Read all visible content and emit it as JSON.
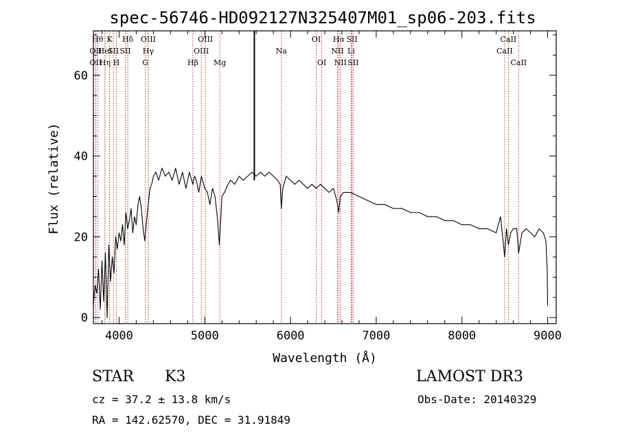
{
  "chart_data": {
    "type": "line",
    "title": "spec-56746-HD092127N325407M01_sp06-203.fits",
    "xlabel": "Wavelength (Å)",
    "ylabel": "Flux (relative)",
    "xlim": [
      3700,
      9100
    ],
    "ylim": [
      -1.5,
      71
    ],
    "xticks": [
      4000,
      5000,
      6000,
      7000,
      8000,
      9000
    ],
    "xtick_labels": [
      "4000",
      "5000",
      "6000",
      "7000",
      "8000",
      "9000"
    ],
    "yticks": [
      0,
      20,
      40,
      60
    ],
    "ytick_labels": [
      "0",
      "20",
      "40",
      "60"
    ],
    "grid": false,
    "spike": {
      "x": 5578,
      "y_top": 71
    },
    "series": [
      {
        "name": "flux",
        "x": [
          3700,
          3720,
          3740,
          3760,
          3780,
          3800,
          3820,
          3840,
          3860,
          3880,
          3900,
          3920,
          3940,
          3960,
          3980,
          4000,
          4020,
          4040,
          4060,
          4080,
          4100,
          4120,
          4140,
          4160,
          4180,
          4200,
          4220,
          4240,
          4260,
          4280,
          4300,
          4320,
          4340,
          4360,
          4380,
          4400,
          4430,
          4460,
          4500,
          4540,
          4580,
          4620,
          4660,
          4700,
          4740,
          4780,
          4820,
          4860,
          4880,
          4900,
          4930,
          4960,
          5000,
          5030,
          5060,
          5090,
          5120,
          5150,
          5170,
          5180,
          5190,
          5200,
          5230,
          5270,
          5300,
          5350,
          5400,
          5450,
          5500,
          5550,
          5600,
          5650,
          5700,
          5750,
          5800,
          5850,
          5880,
          5893,
          5910,
          5950,
          6000,
          6050,
          6100,
          6150,
          6200,
          6250,
          6300,
          6350,
          6400,
          6450,
          6500,
          6540,
          6563,
          6580,
          6620,
          6700,
          6800,
          6900,
          7000,
          7100,
          7200,
          7300,
          7400,
          7500,
          7600,
          7700,
          7800,
          7900,
          8000,
          8100,
          8200,
          8300,
          8400,
          8450,
          8480,
          8498,
          8520,
          8542,
          8570,
          8600,
          8640,
          8662,
          8700,
          8750,
          8800,
          8850,
          8900,
          8950,
          8980,
          8995,
          9000
        ],
        "y": [
          3,
          8,
          6,
          12,
          2,
          14,
          4,
          16,
          0,
          18,
          9,
          15,
          11,
          20,
          17,
          21,
          19,
          23,
          18,
          26,
          22,
          24,
          27,
          21,
          25,
          23,
          28,
          30,
          27,
          22,
          19,
          24,
          28,
          32,
          33,
          35,
          36,
          34,
          37,
          35,
          36,
          34,
          37,
          33,
          36,
          32,
          36,
          33,
          35,
          34,
          31,
          35,
          32,
          31,
          28,
          32,
          30,
          24,
          18,
          22,
          26,
          30,
          31,
          33,
          34,
          33,
          35,
          34,
          35,
          36,
          35,
          36,
          35,
          36,
          35,
          34,
          33,
          27,
          32,
          35,
          34,
          33,
          34,
          33,
          32,
          33,
          32,
          33,
          32,
          31,
          32,
          29,
          26,
          30,
          31,
          31,
          30,
          29,
          28,
          28,
          27,
          27,
          26,
          26,
          25,
          25,
          24,
          24,
          23,
          23,
          22,
          22,
          21,
          25,
          19,
          15,
          22,
          18,
          21,
          22,
          22,
          16,
          21,
          22,
          21,
          20,
          22,
          21,
          19,
          12,
          3
        ]
      }
    ],
    "lines": [
      {
        "x": 3750,
        "row": 1,
        "label": "Hθ"
      },
      {
        "x": 3727,
        "row": 2,
        "label": "OII"
      },
      {
        "x": 3727,
        "row": 3,
        "label": "OII"
      },
      {
        "x": 3835,
        "row": 2,
        "label": "HeI"
      },
      {
        "x": 3835,
        "row": 3,
        "label": "Hη"
      },
      {
        "x": 3889,
        "row": 1,
        "label": "K"
      },
      {
        "x": 3934,
        "row": 2,
        "label": "SII"
      },
      {
        "x": 3968,
        "row": 3,
        "label": "H"
      },
      {
        "x": 4101,
        "row": 1,
        "label": "Hδ"
      },
      {
        "x": 4072,
        "row": 2,
        "label": "SII"
      },
      {
        "x": 4340,
        "row": 1,
        "label": "OIII"
      },
      {
        "x": 4340,
        "row": 2,
        "label": "Hγ"
      },
      {
        "x": 4305,
        "row": 3,
        "label": "G"
      },
      {
        "x": 4861,
        "row": 3,
        "label": "Hβ"
      },
      {
        "x": 5007,
        "row": 1,
        "label": "OIII"
      },
      {
        "x": 4959,
        "row": 2,
        "label": "OIII"
      },
      {
        "x": 5175,
        "row": 3,
        "label": "Mg"
      },
      {
        "x": 5893,
        "row": 2,
        "label": "Na"
      },
      {
        "x": 6300,
        "row": 1,
        "label": "OI"
      },
      {
        "x": 6364,
        "row": 3,
        "label": "OI"
      },
      {
        "x": 6563,
        "row": 1,
        "label": "Hα"
      },
      {
        "x": 6548,
        "row": 2,
        "label": "NII"
      },
      {
        "x": 6583,
        "row": 3,
        "label": "NII"
      },
      {
        "x": 6717,
        "row": 1,
        "label": "SII"
      },
      {
        "x": 6707,
        "row": 2,
        "label": "Li"
      },
      {
        "x": 6731,
        "row": 3,
        "label": "SII"
      },
      {
        "x": 8542,
        "row": 1,
        "label": "CaII"
      },
      {
        "x": 8498,
        "row": 2,
        "label": "CaII"
      },
      {
        "x": 8662,
        "row": 3,
        "label": "CaII"
      }
    ]
  },
  "info": {
    "object_type": "STAR",
    "subclass": "K3",
    "survey": "LAMOST DR3",
    "cz": "cz = 37.2 ± 13.8 km/s",
    "obs_date": "Obs-Date: 20140329",
    "coords": "RA = 142.62570, DEC =  31.91849"
  }
}
